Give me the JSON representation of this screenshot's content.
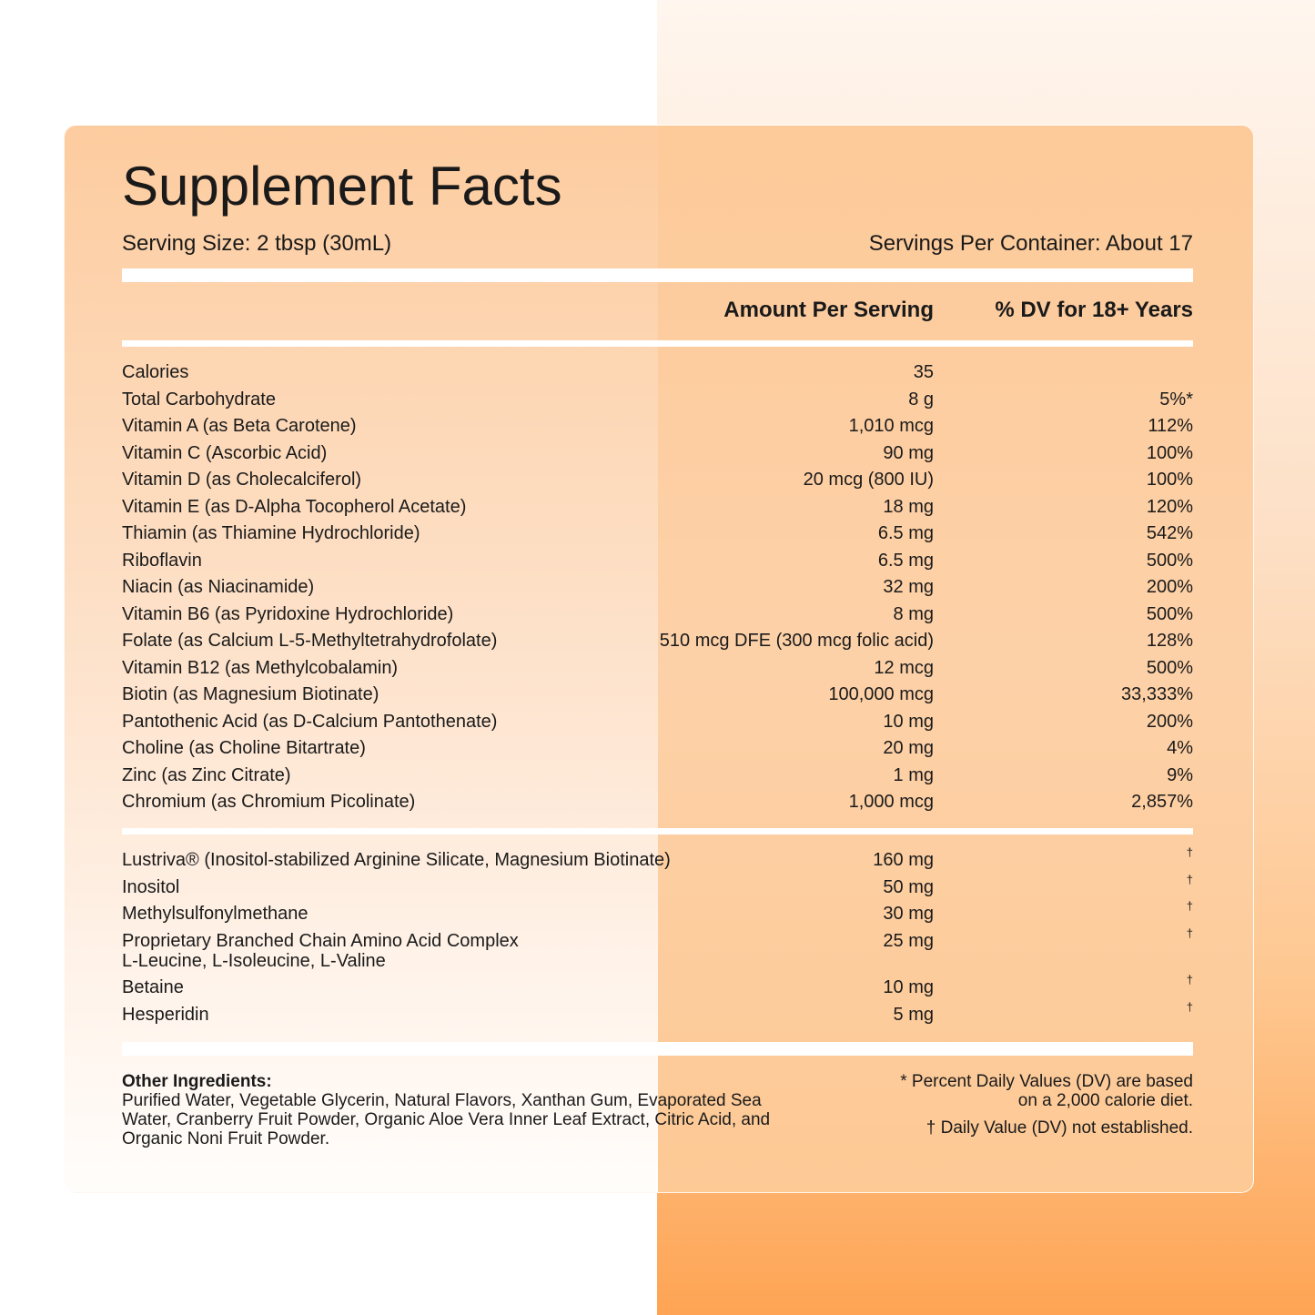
{
  "header": {
    "title": "Supplement Facts",
    "serving_size": "Serving Size: 2 tbsp (30mL)",
    "servings_per_container": "Servings Per Container: About 17"
  },
  "table": {
    "columns": [
      "Amount Per Serving",
      "% DV for 18+ Years"
    ],
    "rows": [
      {
        "name": "Calories",
        "amount": "35"
      },
      {
        "name": "Total Carbohydrate",
        "amount": "8 g",
        "dv": "5%*"
      },
      {
        "name": "Vitamin A (as Beta Carotene)",
        "amount": "1,010 mcg",
        "dv": "112%"
      },
      {
        "name": "Vitamin C (Ascorbic Acid)",
        "amount": "90 mg",
        "dv": "100%"
      },
      {
        "name": "Vitamin D (as Cholecalciferol)",
        "amount": "20 mcg (800 IU)",
        "dv": "100%"
      },
      {
        "name": "Vitamin E (as D-Alpha Tocopherol Acetate)",
        "amount": "18 mg",
        "dv": "120%"
      },
      {
        "name": "Thiamin (as Thiamine Hydrochloride)",
        "amount": "6.5 mg",
        "dv": "542%"
      },
      {
        "name": "Riboflavin",
        "amount": "6.5 mg",
        "dv": "500%"
      },
      {
        "name": "Niacin (as Niacinamide)",
        "amount": "32 mg",
        "dv": "200%"
      },
      {
        "name": "Vitamin B6 (as Pyridoxine Hydrochloride)",
        "amount": "8 mg",
        "dv": "500%"
      },
      {
        "name": "Folate (as Calcium L-5-Methyltetrahydrofolate)",
        "amount": "510 mcg DFE (300 mcg folic acid)",
        "dv": "128%"
      },
      {
        "name": "Vitamin B12 (as Methylcobalamin)",
        "amount": "12 mcg",
        "dv": "500%"
      },
      {
        "name": "Biotin (as Magnesium Biotinate)",
        "amount": "100,000 mcg",
        "dv": "33,333%"
      },
      {
        "name": "Pantothenic Acid (as D-Calcium Pantothenate)",
        "amount": "10 mg",
        "dv": "200%"
      },
      {
        "name": "Choline (as Choline Bitartrate)",
        "amount": "20 mg",
        "dv": "4%"
      },
      {
        "name": "Zinc (as Zinc Citrate)",
        "amount": "1 mg",
        "dv": "9%"
      },
      {
        "name": "Chromium (as Chromium Picolinate)",
        "amount": "1,000 mcg",
        "dv": "2,857%"
      }
    ],
    "other_rows": [
      {
        "name": "Lustriva® (Inositol-stabilized Arginine Silicate, Magnesium Biotinate)",
        "amount": "160 mg",
        "dv": "†"
      },
      {
        "name": "Inositol",
        "amount": "50 mg",
        "dv": "†"
      },
      {
        "name": "Methylsulfonylmethane",
        "amount": "30 mg",
        "dv": "†"
      },
      {
        "name": "Proprietary Branched Chain Amino Acid Complex",
        "sub": "L-Leucine, L-Isoleucine, L-Valine",
        "amount": "25 mg",
        "dv": "†"
      },
      {
        "name": "Betaine",
        "amount": "10 mg",
        "dv": "†"
      },
      {
        "name": "Hesperidin",
        "amount": "5 mg",
        "dv": "†"
      }
    ]
  },
  "footer": {
    "other_ingredients_label": "Other Ingredients:",
    "other_ingredients": "Purified Water, Vegetable Glycerin, Natural Flavors, Xanthan Gum, Evaporated Sea Water, Cranberry Fruit Powder, Organic Aloe Vera Inner Leaf Extract, Citric Acid, and Organic Noni Fruit Powder.",
    "notes": [
      "* Percent Daily Values (DV) are based on a 2,000 calorie diet.",
      "† Daily Value (DV) not established."
    ]
  }
}
